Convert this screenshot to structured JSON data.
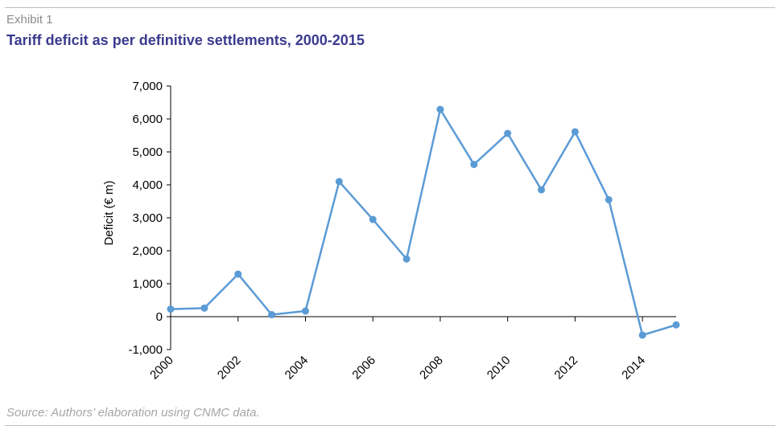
{
  "header": {
    "exhibit": "Exhibit 1",
    "title": "Tariff deficit as per definitive settlements, 2000-2015"
  },
  "footer": {
    "source": "Source: Authors’ elaboration using CNMC data."
  },
  "colors": {
    "series": "#5b9bd5",
    "title": "#3b3b8f",
    "axis": "#000000"
  },
  "chart_data": {
    "type": "line",
    "ylabel": "Deficit (€ m)",
    "xlabel": "",
    "ylim": [
      -1000,
      7000
    ],
    "xlim": [
      2000,
      2015
    ],
    "y_ticks": [
      -1000,
      0,
      1000,
      2000,
      3000,
      4000,
      5000,
      6000,
      7000
    ],
    "y_tick_labels": [
      "-1,000",
      "0",
      "1,000",
      "2,000",
      "3,000",
      "4,000",
      "5,000",
      "6,000",
      "7,000"
    ],
    "x_tick_labels": [
      "2000",
      "2002",
      "2004",
      "2006",
      "2008",
      "2010",
      "2012",
      "2014"
    ],
    "x_ticks": [
      2000,
      2002,
      2004,
      2006,
      2008,
      2010,
      2012,
      2014
    ],
    "grid": false,
    "legend": "none",
    "x": [
      2000,
      2001,
      2002,
      2003,
      2004,
      2005,
      2006,
      2007,
      2008,
      2009,
      2010,
      2011,
      2012,
      2013,
      2014,
      2015
    ],
    "values": [
      230,
      260,
      1290,
      60,
      170,
      4100,
      2950,
      1750,
      6290,
      4620,
      5560,
      3850,
      5610,
      3550,
      -560,
      -250
    ]
  }
}
